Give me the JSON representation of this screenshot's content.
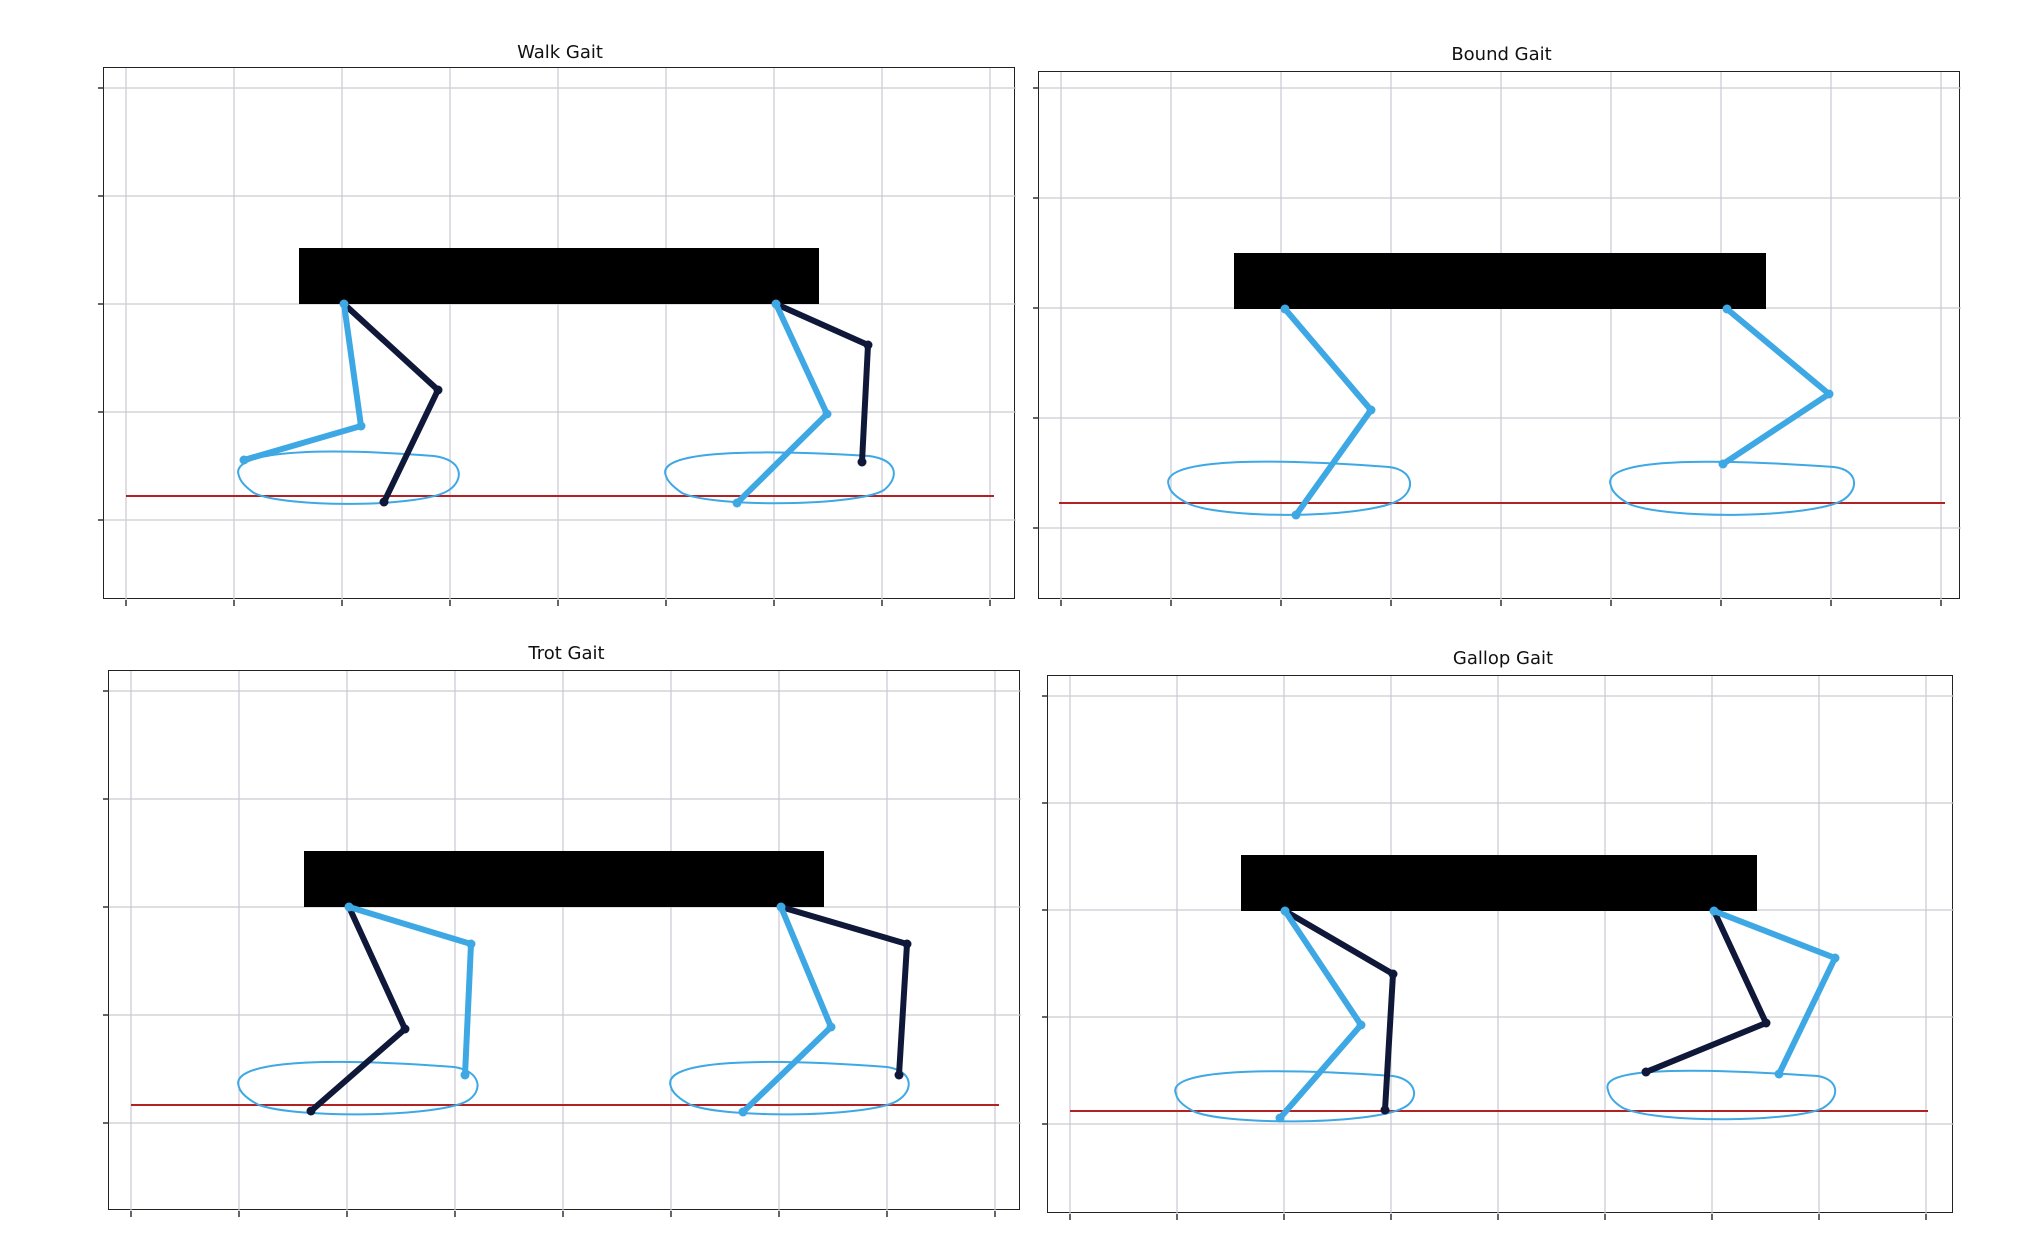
{
  "figure": {
    "panels": [
      {
        "key": "walk",
        "title": "Walk Gait"
      },
      {
        "key": "bound",
        "title": "Bound Gait"
      },
      {
        "key": "trot",
        "title": "Trot Gait"
      },
      {
        "key": "gallop",
        "title": "Gallop Gait"
      }
    ]
  },
  "colors": {
    "body": "#000000",
    "leg_light": "#3ea8e5",
    "leg_dark": "#0f1838",
    "foot_trajectory": "#3ea8e5",
    "ground_line": "#b22222",
    "grid": "#c9c9d2"
  }
}
